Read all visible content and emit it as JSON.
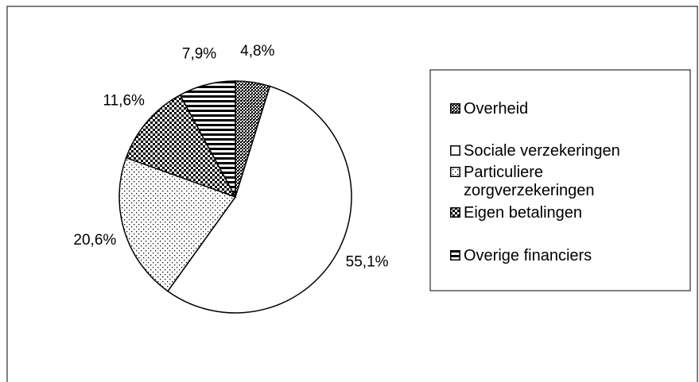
{
  "chart_data": {
    "type": "pie",
    "categories": [
      "Overheid",
      "Sociale verzekeringen",
      "Particuliere zorgverzekeringen",
      "Eigen betalingen",
      "Overige financiers"
    ],
    "values": [
      4.8,
      55.1,
      20.6,
      11.6,
      7.9
    ],
    "value_labels": [
      "4,8%",
      "55,1%",
      "20,6%",
      "11,6%",
      "7,9%"
    ],
    "legend": "right"
  }
}
